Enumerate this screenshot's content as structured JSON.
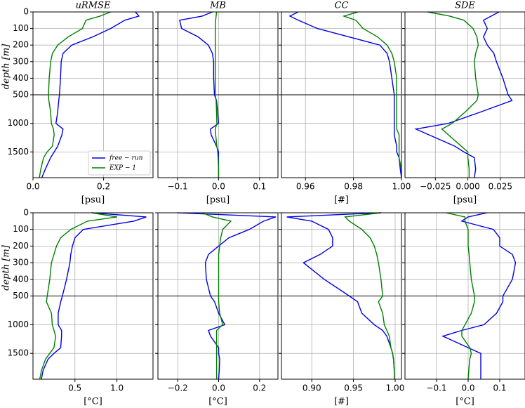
{
  "chart_data": [
    {
      "type": "line",
      "title": "uRMSE",
      "xlabel": "[psu]",
      "ylabel": "depth [m]",
      "legend": "lower right",
      "grid": true,
      "ybreak": 500,
      "xlim": [
        0,
        0.34
      ],
      "xticks": [
        {
          "value": 0,
          "label": "0.0"
        },
        0.2
      ],
      "ylim": [
        1950,
        0
      ],
      "yticks": [
        0,
        100,
        200,
        300,
        400,
        500,
        1000,
        1500
      ],
      "y": [
        0,
        25,
        50,
        100,
        150,
        200,
        250,
        300,
        400,
        500,
        600,
        800,
        1000,
        1100,
        1200,
        1400,
        1500,
        1600,
        1800,
        1950
      ],
      "series": [
        {
          "name": "free − run",
          "color": "#0000e6",
          "values": [
            0.29,
            0.3,
            0.26,
            0.22,
            0.17,
            0.11,
            0.085,
            0.08,
            0.078,
            0.075,
            0.073,
            0.07,
            0.065,
            0.085,
            0.082,
            0.07,
            0.06,
            0.05,
            0.035,
            0.025
          ]
        },
        {
          "name": "EXP − 1",
          "color": "#008000",
          "values": [
            0.22,
            0.19,
            0.15,
            0.14,
            0.1,
            0.07,
            0.055,
            0.05,
            0.046,
            0.044,
            0.045,
            0.05,
            0.052,
            0.058,
            0.06,
            0.055,
            0.04,
            0.03,
            0.022,
            0.018
          ]
        }
      ]
    },
    {
      "type": "line",
      "title": "MB",
      "xlabel": "[psu]",
      "grid": true,
      "ybreak": 500,
      "xlim": [
        -0.148,
        0.145
      ],
      "xticks": [
        {
          "value": -0.1,
          "label": "−0.1"
        },
        {
          "value": 0,
          "label": "0.0"
        },
        0.1
      ],
      "ylim": [
        1950,
        0
      ],
      "yticks": [
        0,
        100,
        200,
        300,
        400,
        500,
        1000,
        1500
      ],
      "y": [
        0,
        25,
        50,
        100,
        150,
        200,
        250,
        300,
        400,
        500,
        600,
        800,
        1000,
        1100,
        1200,
        1400,
        1500,
        1600,
        1800,
        1950
      ],
      "series": [
        {
          "color": "#0000e6",
          "values": [
            -0.015,
            -0.04,
            -0.095,
            -0.09,
            -0.05,
            -0.025,
            -0.015,
            -0.012,
            -0.012,
            -0.01,
            -0.005,
            -0.002,
            0.0,
            -0.02,
            -0.018,
            -0.005,
            0.0,
            0.0,
            0.0,
            0.0
          ]
        },
        {
          "color": "#008000",
          "values": [
            -0.005,
            -0.006,
            -0.007,
            -0.008,
            -0.008,
            -0.008,
            -0.008,
            -0.008,
            -0.008,
            -0.008,
            -0.006,
            -0.005,
            -0.004,
            -0.008,
            -0.007,
            -0.004,
            -0.002,
            -0.001,
            0.0,
            0.0
          ]
        }
      ]
    },
    {
      "type": "line",
      "title": "CC",
      "xlabel": "[#]",
      "grid": true,
      "ybreak": 500,
      "xlim": [
        0.95,
        1.0
      ],
      "xticks": [
        0.96,
        0.98,
        {
          "value": 1,
          "label": "1.00"
        }
      ],
      "ylim": [
        1950,
        0
      ],
      "yticks": [
        0,
        100,
        200,
        300,
        400,
        500,
        1000,
        1500
      ],
      "y": [
        0,
        25,
        50,
        100,
        150,
        200,
        250,
        300,
        400,
        500,
        600,
        800,
        1000,
        1100,
        1200,
        1400,
        1500,
        1600,
        1800,
        1950
      ],
      "series": [
        {
          "color": "#0000e6",
          "values": [
            0.957,
            0.9535,
            0.957,
            0.965,
            0.978,
            0.991,
            0.994,
            0.995,
            0.996,
            0.997,
            0.997,
            0.997,
            0.997,
            0.997,
            0.997,
            0.998,
            0.998,
            0.999,
            0.9995,
            1.0
          ]
        },
        {
          "color": "#008000",
          "values": [
            0.982,
            0.976,
            0.981,
            0.984,
            0.99,
            0.994,
            0.996,
            0.997,
            0.998,
            0.998,
            0.998,
            0.998,
            0.998,
            0.998,
            0.999,
            0.999,
            0.999,
            0.999,
            1.0,
            1.0
          ]
        }
      ]
    },
    {
      "type": "line",
      "title": "SDE",
      "xlabel": "[psu]",
      "grid": true,
      "ybreak": 500,
      "xlim": [
        -0.0484,
        0.044
      ],
      "xticks": [
        {
          "value": -0.025,
          "label": "−0.025"
        },
        {
          "value": 0,
          "label": "0.000"
        },
        0.025
      ],
      "ylim": [
        1950,
        0
      ],
      "yticks": [
        0,
        100,
        200,
        300,
        400,
        500,
        1000,
        1500
      ],
      "y": [
        0,
        25,
        50,
        100,
        150,
        200,
        250,
        300,
        400,
        500,
        600,
        800,
        1000,
        1100,
        1200,
        1400,
        1500,
        1600,
        1800,
        1950
      ],
      "series": [
        {
          "color": "#0000e6",
          "values": [
            0.024,
            0.018,
            0.012,
            0.015,
            0.012,
            0.015,
            0.02,
            0.022,
            0.027,
            0.031,
            0.034,
            0.01,
            -0.015,
            -0.04,
            -0.03,
            -0.01,
            -0.003,
            0.005,
            0.006,
            0.005
          ]
        },
        {
          "color": "#008000",
          "values": [
            -0.031,
            -0.014,
            -0.003,
            0.004,
            0.007,
            0.008,
            0.006,
            0.005,
            0.006,
            0.008,
            0.007,
            -0.002,
            -0.012,
            -0.02,
            -0.015,
            -0.005,
            0.0,
            0.0,
            0.001,
            0.001
          ]
        }
      ]
    },
    {
      "type": "line",
      "xlabel": "[°C]",
      "ylabel": "depth [m]",
      "grid": true,
      "ybreak": 500,
      "xlim": [
        0,
        1.43
      ],
      "xticks": [
        0.5,
        {
          "value": 1,
          "label": "1.0"
        }
      ],
      "ylim": [
        1950,
        0
      ],
      "yticks": [
        0,
        100,
        200,
        300,
        400,
        500,
        1000,
        1500
      ],
      "y": [
        0,
        25,
        50,
        100,
        150,
        200,
        250,
        300,
        400,
        500,
        600,
        800,
        1000,
        1100,
        1200,
        1400,
        1500,
        1600,
        1800,
        1950
      ],
      "series": [
        {
          "color": "#0000e6",
          "values": [
            0.7,
            1.35,
            1.2,
            0.6,
            0.5,
            0.47,
            0.45,
            0.44,
            0.4,
            0.35,
            0.33,
            0.3,
            0.3,
            0.34,
            0.34,
            0.33,
            0.25,
            0.18,
            0.12,
            0.1
          ]
        },
        {
          "color": "#008000",
          "values": [
            0.7,
            1.0,
            0.65,
            0.45,
            0.33,
            0.28,
            0.25,
            0.22,
            0.2,
            0.17,
            0.16,
            0.22,
            0.23,
            0.25,
            0.27,
            0.25,
            0.2,
            0.15,
            0.1,
            0.08
          ]
        }
      ]
    },
    {
      "type": "line",
      "xlabel": "[°C]",
      "grid": true,
      "ybreak": 500,
      "xlim": [
        -0.297,
        0.29
      ],
      "xticks": [
        {
          "value": -0.2,
          "label": "−0.2"
        },
        {
          "value": 0,
          "label": "0.0"
        },
        0.2
      ],
      "ylim": [
        1950,
        0
      ],
      "yticks": [
        0,
        100,
        200,
        300,
        400,
        500,
        1000,
        1500
      ],
      "y": [
        0,
        25,
        50,
        100,
        150,
        200,
        250,
        300,
        400,
        500,
        600,
        800,
        1000,
        1100,
        1200,
        1400,
        1500,
        1600,
        1800,
        1950
      ],
      "series": [
        {
          "color": "#0000e6",
          "values": [
            -0.2,
            0.28,
            0.22,
            0.15,
            0.05,
            0.0,
            -0.05,
            -0.065,
            -0.06,
            -0.04,
            -0.02,
            0.0,
            0.03,
            -0.05,
            -0.04,
            0.0,
            0.0,
            0.005,
            0.003,
            0.0
          ]
        },
        {
          "color": "#008000",
          "values": [
            -0.08,
            -0.03,
            0.06,
            0.02,
            0.01,
            0.005,
            0.0,
            0.0,
            0.0,
            0.0,
            0.0,
            0.005,
            0.02,
            -0.01,
            -0.01,
            -0.01,
            -0.01,
            -0.01,
            -0.01,
            -0.01
          ]
        }
      ]
    },
    {
      "type": "line",
      "xlabel": "[#]",
      "grid": true,
      "ybreak": 500,
      "xlim": [
        0.8636,
        1.0076
      ],
      "xticks": [
        {
          "value": 0.9,
          "label": "0.90"
        },
        0.95,
        {
          "value": 1,
          "label": "1.00"
        }
      ],
      "ylim": [
        1950,
        0
      ],
      "yticks": [
        0,
        100,
        200,
        300,
        400,
        500,
        1000,
        1500
      ],
      "y": [
        0,
        25,
        50,
        100,
        150,
        200,
        250,
        300,
        400,
        500,
        600,
        800,
        1000,
        1100,
        1200,
        1400,
        1500,
        1600,
        1800,
        1950
      ],
      "series": [
        {
          "color": "#0000e6",
          "values": [
            0.983,
            0.87,
            0.9,
            0.92,
            0.925,
            0.925,
            0.91,
            0.89,
            0.915,
            0.945,
            0.955,
            0.96,
            0.975,
            0.985,
            0.99,
            0.995,
            0.997,
            0.998,
            0.999,
            0.999
          ]
        },
        {
          "color": "#008000",
          "values": [
            0.983,
            0.94,
            0.945,
            0.96,
            0.97,
            0.975,
            0.978,
            0.98,
            0.983,
            0.985,
            0.98,
            0.985,
            0.987,
            0.99,
            0.993,
            0.995,
            0.997,
            0.998,
            0.999,
            0.999
          ]
        }
      ]
    },
    {
      "type": "line",
      "xlabel": "[°C]",
      "grid": true,
      "ybreak": 500,
      "xlim": [
        -0.2,
        0.18
      ],
      "xticks": [
        {
          "value": -0.1,
          "label": "−0.1"
        },
        {
          "value": 0,
          "label": "0.0"
        },
        0.1
      ],
      "ylim": [
        1950,
        0
      ],
      "yticks": [
        0,
        100,
        200,
        300,
        400,
        500,
        1000,
        1500
      ],
      "y": [
        0,
        25,
        50,
        100,
        150,
        200,
        250,
        300,
        400,
        500,
        600,
        800,
        1000,
        1100,
        1200,
        1400,
        1500,
        1600,
        1800,
        1950
      ],
      "series": [
        {
          "color": "#0000e6",
          "values": [
            0.06,
            0.0,
            -0.02,
            0.08,
            0.1,
            0.1,
            0.14,
            0.15,
            0.14,
            0.11,
            0.11,
            0.09,
            0.05,
            -0.02,
            -0.08,
            0.0,
            0.04,
            0.04,
            0.04,
            0.04
          ]
        },
        {
          "color": "#008000",
          "values": [
            -0.07,
            -0.01,
            -0.01,
            0.0,
            0.0,
            0.0,
            0.003,
            0.005,
            0.01,
            0.02,
            0.02,
            0.01,
            -0.01,
            -0.02,
            -0.02,
            0.005,
            0.01,
            0.005,
            0.002,
            0.0
          ]
        }
      ]
    }
  ]
}
